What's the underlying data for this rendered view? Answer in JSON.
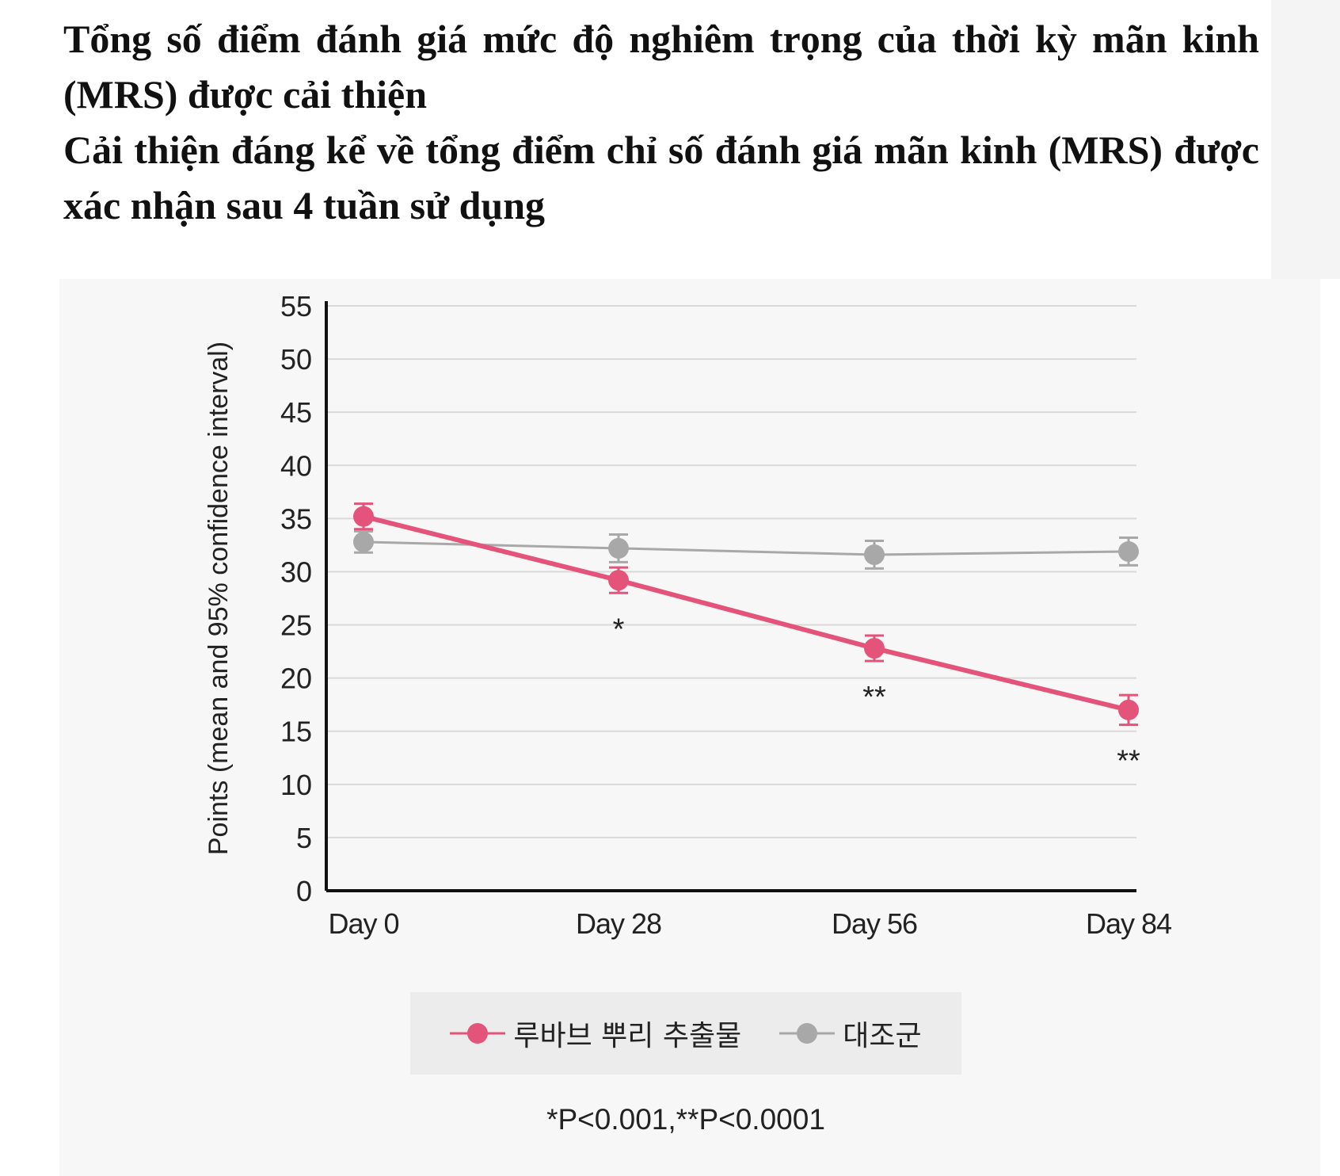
{
  "heading": {
    "line1": "Tổng số điểm đánh giá mức độ nghiêm trọng của thời kỳ mãn kinh (MRS) được cải thiện",
    "line2": "Cải thiện đáng kể về tổng điểm chỉ số đánh giá mãn kinh (MRS) được xác nhận sau 4 tuần sử dụng"
  },
  "chart_data": {
    "type": "line",
    "categories": [
      "Day 0",
      "Day 28",
      "Day 56",
      "Day 84"
    ],
    "ylabel": "Points (mean and 95% confidence interval)",
    "xlabel": "",
    "ylim": [
      0,
      55
    ],
    "yticks": [
      0,
      5,
      10,
      15,
      20,
      25,
      30,
      35,
      40,
      45,
      50,
      55
    ],
    "grid": true,
    "series": [
      {
        "name": "루바브 뿌리 추출물",
        "color": "#e4547a",
        "values": [
          35.2,
          29.2,
          22.8,
          17.0
        ],
        "ci_low": [
          34.0,
          28.0,
          21.6,
          15.6
        ],
        "ci_high": [
          36.4,
          30.4,
          24.0,
          18.4
        ],
        "annotations": [
          "",
          "*",
          "**",
          "**"
        ]
      },
      {
        "name": "대조군",
        "color": "#a8a8a8",
        "values": [
          32.8,
          32.2,
          31.6,
          31.9
        ],
        "ci_low": [
          31.8,
          30.9,
          30.3,
          30.6
        ],
        "ci_high": [
          33.8,
          33.5,
          32.9,
          33.2
        ],
        "annotations": [
          "",
          "",
          "",
          ""
        ]
      }
    ],
    "legend_position": "bottom",
    "footnote": "*P<0.001,**P<0.0001"
  }
}
